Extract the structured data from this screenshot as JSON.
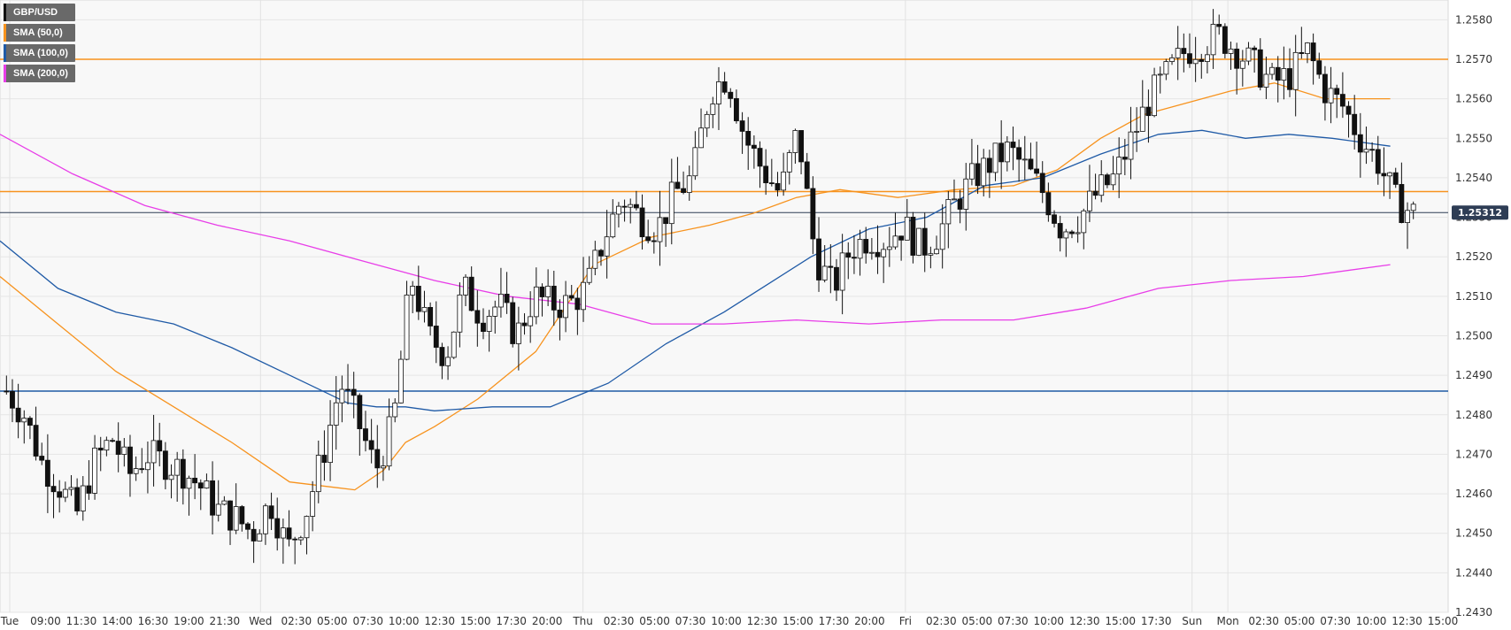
{
  "legend": [
    {
      "label": "GBP/USD",
      "color": "#111111"
    },
    {
      "label": "SMA (50,0)",
      "color": "#f7931e"
    },
    {
      "label": "SMA (100,0)",
      "color": "#1f5aa6"
    },
    {
      "label": "SMA (200,0)",
      "color": "#e83ee8"
    }
  ],
  "last_price_label": "1.25312",
  "chart_data": {
    "type": "candlestick",
    "title": "GBP/USD",
    "ylim": [
      1.243,
      1.2585
    ],
    "y_ticks": [
      "1.2430",
      "1.2440",
      "1.2450",
      "1.2460",
      "1.2470",
      "1.2480",
      "1.2490",
      "1.2500",
      "1.2510",
      "1.2520",
      "1.2530",
      "1.2540",
      "1.2550",
      "1.2560",
      "1.2570",
      "1.2580"
    ],
    "x_ticks": [
      "Tue",
      "09:00",
      "11:30",
      "14:00",
      "16:30",
      "19:00",
      "21:30",
      "Wed",
      "02:30",
      "05:00",
      "07:30",
      "10:00",
      "12:30",
      "15:00",
      "17:30",
      "20:00",
      "Thu",
      "02:30",
      "05:00",
      "07:30",
      "10:00",
      "12:30",
      "15:00",
      "17:30",
      "20:00",
      "Fri",
      "02:30",
      "05:00",
      "07:30",
      "10:00",
      "12:30",
      "15:00",
      "17:30",
      "Sun",
      "Mon",
      "02:30",
      "05:00",
      "07:30",
      "10:00",
      "12:30",
      "15:00"
    ],
    "day_separators": [
      "Tue",
      "Wed",
      "Thu",
      "Fri",
      "Sun",
      "Mon"
    ],
    "horizontal_levels": [
      {
        "value": 1.257,
        "color": "#f7931e"
      },
      {
        "value": 1.25365,
        "color": "#f7931e"
      },
      {
        "value": 1.2486,
        "color": "#1f5aa6"
      }
    ],
    "last_price": 1.25312,
    "ohlc_anchor_closes": [
      1.2486,
      1.248,
      1.2468,
      1.2462,
      1.2455,
      1.2468,
      1.2474,
      1.2465,
      1.247,
      1.2468,
      1.2466,
      1.2462,
      1.2456,
      1.2454,
      1.245,
      1.2458,
      1.2446,
      1.2455,
      1.247,
      1.2488,
      1.2478,
      1.2466,
      1.2478,
      1.2515,
      1.25,
      1.2495,
      1.2512,
      1.2505,
      1.2508,
      1.25,
      1.251,
      1.2508,
      1.2508,
      1.2512,
      1.2525,
      1.2535,
      1.253,
      1.2527,
      1.2536,
      1.254,
      1.2562,
      1.2566,
      1.255,
      1.2542,
      1.2536,
      1.2552,
      1.252,
      1.2512,
      1.2522,
      1.2525,
      1.2524,
      1.2528,
      1.2522,
      1.2526,
      1.2534,
      1.254,
      1.2544,
      1.2547,
      1.2542,
      1.2536,
      1.2527,
      1.253,
      1.2536,
      1.254,
      1.255,
      1.256,
      1.2566,
      1.2572,
      1.2574,
      1.2576,
      1.2572,
      1.2568,
      1.2564,
      1.2566,
      1.2572,
      1.2562,
      1.2558,
      1.255,
      1.2544,
      1.2534,
      1.2531
    ],
    "series": [
      {
        "name": "SMA (50,0)",
        "color": "#f7931e",
        "x": [
          0,
          0.04,
          0.08,
          0.12,
          0.16,
          0.2,
          0.245,
          0.265,
          0.28,
          0.3,
          0.33,
          0.37,
          0.41,
          0.45,
          0.49,
          0.52,
          0.55,
          0.58,
          0.62,
          0.66,
          0.7,
          0.73,
          0.76,
          0.79,
          0.82,
          0.85,
          0.88,
          0.915,
          0.96
        ],
        "values": [
          1.2515,
          1.2503,
          1.2491,
          1.2482,
          1.2473,
          1.2463,
          1.2461,
          1.2466,
          1.2473,
          1.2477,
          1.2484,
          1.2496,
          1.2518,
          1.2525,
          1.2528,
          1.2531,
          1.2535,
          1.2537,
          1.2535,
          1.2537,
          1.2538,
          1.2542,
          1.255,
          1.2556,
          1.2559,
          1.2562,
          1.2564,
          1.256,
          1.256
        ]
      },
      {
        "name": "SMA (100,0)",
        "color": "#1f5aa6",
        "x": [
          0,
          0.04,
          0.08,
          0.12,
          0.16,
          0.2,
          0.24,
          0.26,
          0.28,
          0.3,
          0.34,
          0.38,
          0.42,
          0.46,
          0.5,
          0.53,
          0.56,
          0.6,
          0.64,
          0.68,
          0.72,
          0.76,
          0.8,
          0.83,
          0.86,
          0.89,
          0.92,
          0.96
        ],
        "values": [
          1.2524,
          1.2512,
          1.2506,
          1.2503,
          1.2497,
          1.249,
          1.2483,
          1.2482,
          1.2482,
          1.2481,
          1.2482,
          1.2482,
          1.2488,
          1.2498,
          1.2506,
          1.2513,
          1.252,
          1.2527,
          1.253,
          1.2538,
          1.254,
          1.2546,
          1.2551,
          1.2552,
          1.255,
          1.2551,
          1.255,
          1.2548
        ]
      },
      {
        "name": "SMA (200,0)",
        "color": "#e83ee8",
        "x": [
          0,
          0.05,
          0.1,
          0.15,
          0.2,
          0.25,
          0.3,
          0.35,
          0.4,
          0.45,
          0.5,
          0.55,
          0.6,
          0.65,
          0.7,
          0.75,
          0.8,
          0.85,
          0.9,
          0.96
        ],
        "values": [
          1.2551,
          1.2541,
          1.2533,
          1.2528,
          1.2524,
          1.2519,
          1.2514,
          1.251,
          1.2508,
          1.2503,
          1.2503,
          1.2504,
          1.2503,
          1.2504,
          1.2504,
          1.2507,
          1.2512,
          1.2514,
          1.2515,
          1.2518
        ]
      }
    ]
  }
}
